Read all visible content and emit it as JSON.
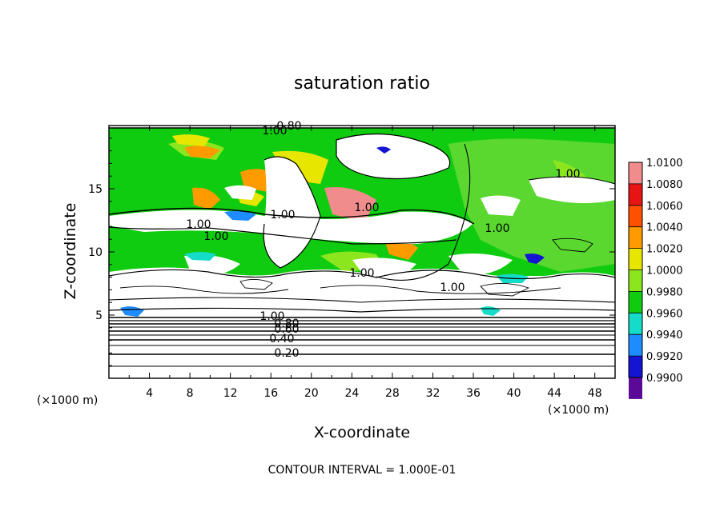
{
  "chart_data": {
    "type": "heatmap",
    "title": "saturation ratio",
    "xlabel": "X-coordinate",
    "ylabel": "Z-coordinate",
    "x_unit": "(×1000 m)",
    "y_unit": "(×1000 m)",
    "xlim": [
      0,
      50
    ],
    "ylim": [
      0,
      20
    ],
    "x_ticks": [
      4,
      8,
      12,
      16,
      20,
      24,
      28,
      32,
      36,
      40,
      44,
      48
    ],
    "y_ticks": [
      5,
      10,
      15
    ],
    "colorbar": {
      "levels": [
        "1.0100",
        "1.0080",
        "1.0060",
        "1.0040",
        "1.0020",
        "1.0000",
        "0.9980",
        "0.9960",
        "0.9940",
        "0.9920",
        "0.9900"
      ],
      "colors": [
        "#f08c8c",
        "#e81414",
        "#ff5000",
        "#ff9a00",
        "#e6e600",
        "#8ce61e",
        "#10cc10",
        "#14dcc8",
        "#1e8cff",
        "#1414d2",
        "#5a0a96"
      ]
    },
    "contour_labels": [
      "1.00",
      "0.80",
      "1.00",
      "1.00",
      "1.00",
      "1.00",
      "1.00",
      "1.00",
      "1.00",
      "1.00",
      "1.00",
      "0.80",
      "0.60",
      "0.40",
      "0.20"
    ],
    "contour_interval_text": "CONTOUR INTERVAL = 1.000E-01"
  }
}
